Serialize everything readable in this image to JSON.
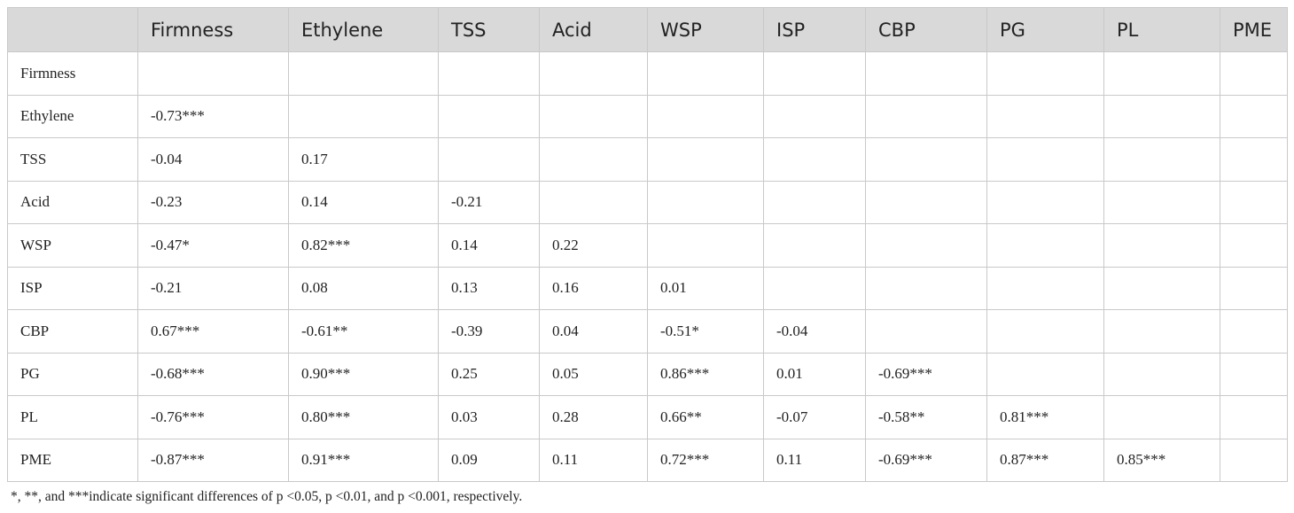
{
  "table": {
    "columns": [
      "Firmness",
      "Ethylene",
      "TSS",
      "Acid",
      "WSP",
      "ISP",
      "CBP",
      "PG",
      "PL",
      "PME"
    ],
    "rows": [
      {
        "label": "Firmness"
      },
      {
        "label": "Ethylene",
        "values": [
          "-0.73***"
        ]
      },
      {
        "label": "TSS",
        "values": [
          "-0.04",
          "0.17"
        ]
      },
      {
        "label": "Acid",
        "values": [
          "-0.23",
          "0.14",
          "-0.21"
        ]
      },
      {
        "label": "WSP",
        "values": [
          "-0.47*",
          "0.82***",
          "0.14",
          "0.22"
        ]
      },
      {
        "label": "ISP",
        "values": [
          "-0.21",
          "0.08",
          "0.13",
          "0.16",
          "0.01"
        ]
      },
      {
        "label": "CBP",
        "values": [
          "0.67***",
          "-0.61**",
          "-0.39",
          "0.04",
          "-0.51*",
          "-0.04"
        ]
      },
      {
        "label": "PG",
        "values": [
          "-0.68***",
          "0.90***",
          "0.25",
          "0.05",
          "0.86***",
          "0.01",
          "-0.69***"
        ]
      },
      {
        "label": "PL",
        "values": [
          "-0.76***",
          "0.80***",
          "0.03",
          "0.28",
          "0.66**",
          "-0.07",
          "-0.58**",
          "0.81***"
        ]
      },
      {
        "label": "PME",
        "values": [
          "-0.87***",
          "0.91***",
          "0.09",
          "0.11",
          "0.72***",
          "0.11",
          "-0.69***",
          "0.87***",
          "0.85***"
        ]
      }
    ]
  },
  "footnote": "*, **, and ***indicate significant differences of p <0.05, p <0.01, and p <0.001, respectively."
}
